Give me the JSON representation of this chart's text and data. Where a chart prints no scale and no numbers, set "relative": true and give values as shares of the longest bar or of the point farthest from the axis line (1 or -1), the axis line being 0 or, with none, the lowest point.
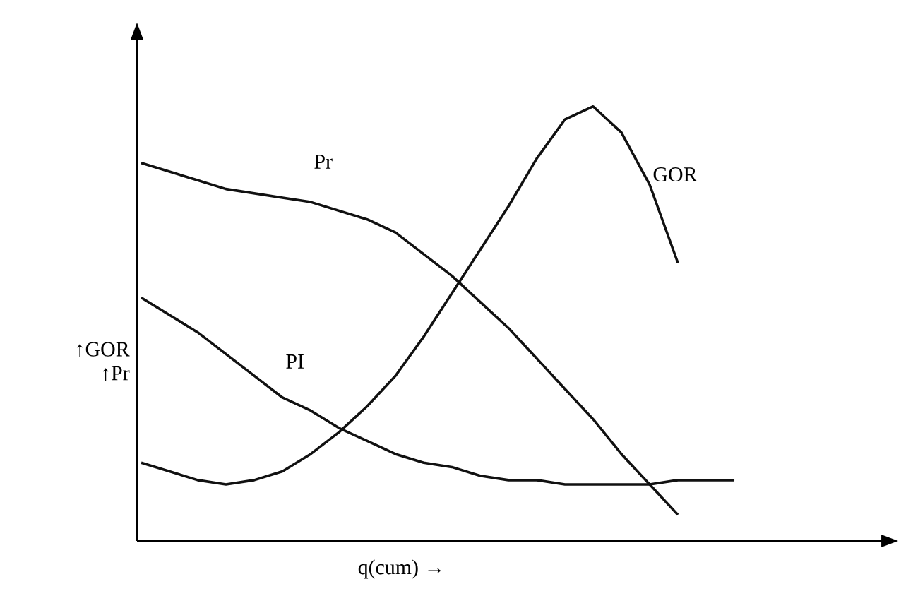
{
  "chart_data": {
    "type": "line",
    "relative": true,
    "xlabel": "q(cum) →",
    "ylabel": "↑GOR ↑Pr",
    "categories": [
      null,
      null,
      null,
      null,
      null,
      null,
      null,
      null,
      null,
      null,
      null,
      null,
      null,
      null,
      null,
      null,
      null,
      null,
      null,
      null,
      null,
      null
    ],
    "series": [
      {
        "name": "Pr",
        "color": "#111111",
        "values": [
          0.87,
          0.85,
          0.83,
          0.81,
          0.8,
          0.79,
          0.78,
          0.76,
          0.74,
          0.71,
          0.66,
          0.61,
          0.55,
          0.49,
          0.42,
          0.35,
          0.28,
          0.2,
          0.13,
          0.06,
          null,
          null
        ]
      },
      {
        "name": "PI",
        "color": "#111111",
        "values": [
          0.56,
          0.52,
          0.48,
          0.43,
          0.38,
          0.33,
          0.3,
          0.26,
          0.23,
          0.2,
          0.18,
          0.17,
          0.15,
          0.14,
          0.14,
          0.13,
          0.13,
          0.13,
          0.13,
          0.14,
          0.14,
          0.14
        ]
      },
      {
        "name": "GOR",
        "color": "#111111",
        "values": [
          0.18,
          0.16,
          0.14,
          0.13,
          0.14,
          0.16,
          0.2,
          0.25,
          0.31,
          0.38,
          0.47,
          0.57,
          0.67,
          0.77,
          0.88,
          0.97,
          1.0,
          0.94,
          0.82,
          0.64,
          null,
          null
        ]
      }
    ]
  }
}
